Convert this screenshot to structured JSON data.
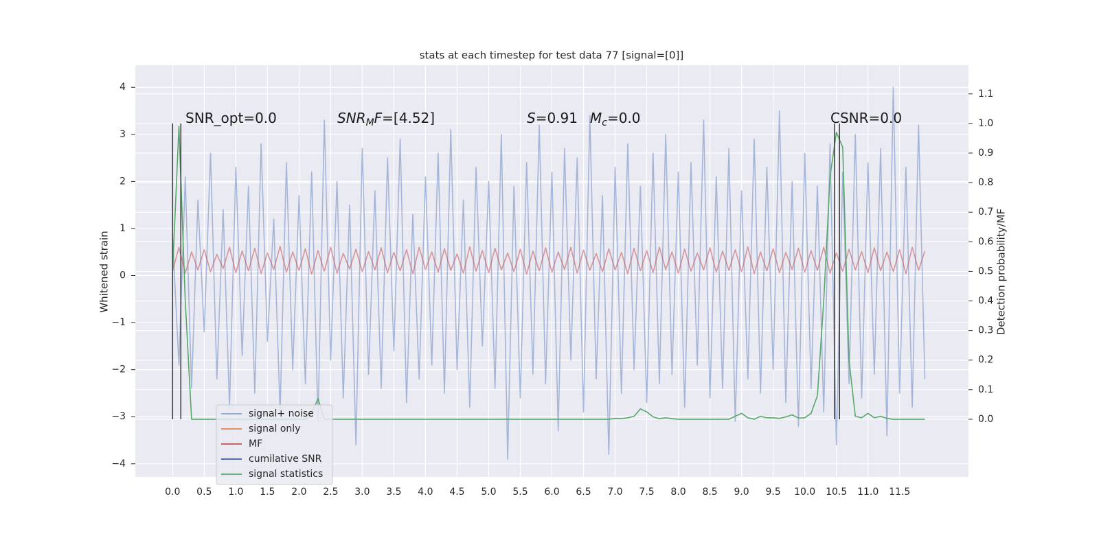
{
  "chart_data": {
    "type": "line",
    "title": "stats at each timestep for test data 77 [signal=[0]]",
    "y_label": "Whitened strain",
    "y2_label": "Detection probability/MF",
    "grid": true,
    "legend": "lower left",
    "xlim": [
      -0.59,
      12.59
    ],
    "ylim": [
      -4.28,
      4.47
    ],
    "y2lim": [
      -0.195,
      1.197
    ],
    "xticks": [
      {
        "value": 0,
        "label": "0.0"
      },
      0.5,
      {
        "value": 1,
        "label": "1.0"
      },
      1.5,
      {
        "value": 2,
        "label": "2.0"
      },
      2.5,
      {
        "value": 3,
        "label": "3.0"
      },
      3.5,
      {
        "value": 4,
        "label": "4.0"
      },
      4.5,
      {
        "value": 5,
        "label": "5.0"
      },
      5.5,
      {
        "value": 6,
        "label": "6.0"
      },
      6.5,
      {
        "value": 7,
        "label": "7.0"
      },
      7.5,
      {
        "value": 8,
        "label": "8.0"
      },
      8.5,
      {
        "value": 9,
        "label": "9.0"
      },
      9.5,
      {
        "value": 10,
        "label": "10.0"
      },
      10.5,
      {
        "value": 11,
        "label": "11.0"
      },
      11.5
    ],
    "yticks": [
      {
        "value": -4,
        "label": "−4"
      },
      {
        "value": -3,
        "label": "−3"
      },
      {
        "value": -2,
        "label": "−2"
      },
      {
        "value": -1,
        "label": "−1"
      },
      0,
      1,
      2,
      3,
      4
    ],
    "y2ticks": [
      {
        "value": 0,
        "label": "0.0"
      },
      0.1,
      0.2,
      0.3,
      0.4,
      0.5,
      0.6,
      0.7,
      0.8,
      0.9,
      {
        "value": 1,
        "label": "1.0"
      },
      1.1
    ],
    "annotations": [
      {
        "parts": [
          {
            "text": "SNR_opt=0.0"
          }
        ]
      },
      {
        "parts": [
          {
            "text": "SNR",
            "style": "italic"
          },
          {
            "text": "M",
            "style": "sub"
          },
          {
            "text": "F",
            "style": "italic"
          },
          {
            "text": "=[4.52]"
          }
        ]
      },
      {
        "parts": [
          {
            "text": "S",
            "style": "italic"
          },
          {
            "text": "=0.91"
          }
        ]
      },
      {
        "parts": [
          {
            "text": "M",
            "style": "italic"
          },
          {
            "text": "c",
            "style": "sub"
          },
          {
            "text": "=0.0"
          }
        ]
      },
      {
        "parts": [
          {
            "text": "CSNR=0.0"
          }
        ]
      }
    ],
    "vlines": {
      "color": "#3a3a3a",
      "x": [
        0,
        0.13,
        10.47,
        10.55
      ]
    },
    "x": [
      0,
      0.1,
      0.2,
      0.3,
      0.4,
      0.5,
      0.6,
      0.7,
      0.8,
      0.9,
      1,
      1.1,
      1.2,
      1.3,
      1.4,
      1.5,
      1.6,
      1.7,
      1.8,
      1.9,
      2,
      2.1,
      2.2,
      2.3,
      2.4,
      2.5,
      2.6,
      2.7,
      2.8,
      2.9,
      3,
      3.1,
      3.2,
      3.3,
      3.4,
      3.5,
      3.6,
      3.7,
      3.8,
      3.9,
      4,
      4.1,
      4.2,
      4.3,
      4.4,
      4.5,
      4.6,
      4.7,
      4.8,
      4.9,
      5,
      5.1,
      5.2,
      5.3,
      5.4,
      5.5,
      5.6,
      5.7,
      5.8,
      5.9,
      6,
      6.1,
      6.2,
      6.3,
      6.4,
      6.5,
      6.6,
      6.7,
      6.8,
      6.9,
      7,
      7.1,
      7.2,
      7.3,
      7.4,
      7.5,
      7.6,
      7.7,
      7.8,
      7.9,
      8,
      8.1,
      8.2,
      8.3,
      8.4,
      8.5,
      8.6,
      8.7,
      8.8,
      8.9,
      9,
      9.1,
      9.2,
      9.3,
      9.4,
      9.5,
      9.6,
      9.7,
      9.8,
      9.9,
      10,
      10.1,
      10.2,
      10.3,
      10.4,
      10.5,
      10.6,
      10.7,
      10.8,
      10.9,
      11,
      11.1,
      11.2,
      11.3,
      11.4,
      11.5,
      11.6,
      11.7,
      11.8,
      11.9
    ],
    "series": [
      {
        "name": "signal+ noise",
        "color": "#8da3cf",
        "values": [
          0.8,
          -1.9,
          2.1,
          -2.4,
          1.6,
          -1.2,
          2.6,
          -2.2,
          1.4,
          -2.8,
          2.3,
          -1.7,
          1.9,
          -2.5,
          2.8,
          -1.4,
          1.2,
          -2.9,
          2.4,
          -2.0,
          1.7,
          -2.3,
          2.2,
          -3.1,
          3.3,
          -1.8,
          2.0,
          -2.6,
          1.5,
          -3.6,
          2.7,
          -2.1,
          1.8,
          -2.4,
          2.5,
          -1.6,
          2.9,
          -2.7,
          1.3,
          -2.2,
          2.1,
          -1.9,
          2.6,
          -2.5,
          3.1,
          -2.0,
          1.6,
          -2.8,
          2.3,
          -1.5,
          2.0,
          -2.4,
          3.0,
          -3.9,
          1.9,
          -2.6,
          2.4,
          -2.1,
          3.2,
          -2.3,
          2.2,
          -3.3,
          2.7,
          -1.8,
          2.5,
          -2.9,
          3.4,
          -2.2,
          1.7,
          -3.8,
          2.3,
          -2.5,
          2.8,
          -2.0,
          1.9,
          -2.7,
          2.6,
          -2.3,
          3.0,
          -2.1,
          2.2,
          -2.8,
          2.4,
          -1.9,
          3.3,
          -2.6,
          2.1,
          -2.4,
          2.7,
          -3.1,
          1.8,
          -2.2,
          2.9,
          -2.5,
          2.3,
          -2.0,
          3.5,
          -2.7,
          2.0,
          -3.2,
          2.6,
          -2.4,
          1.9,
          -2.9,
          2.8,
          -3.6,
          2.2,
          -2.3,
          3.0,
          -2.6,
          2.4,
          -2.1,
          2.7,
          -3.4,
          4.0,
          -2.5,
          2.3,
          -2.8,
          3.2,
          -2.2
        ]
      },
      {
        "name": "signal only",
        "color": "#dd8452"
      },
      {
        "name": "MF",
        "color": "#c44e52",
        "values": [
          0.1,
          0.6,
          0.05,
          0.5,
          0.12,
          0.55,
          0.08,
          0.45,
          0.15,
          0.6,
          0.06,
          0.52,
          0.1,
          0.58,
          0.04,
          0.48,
          0.13,
          0.62,
          0.07,
          0.5,
          0.11,
          0.57,
          0.03,
          0.53,
          0.09,
          0.6,
          0.05,
          0.47,
          0.14,
          0.56,
          0.08,
          0.51,
          0.12,
          0.59,
          0.06,
          0.49,
          0.1,
          0.55,
          0.04,
          0.6,
          0.13,
          0.5,
          0.07,
          0.57,
          0.11,
          0.46,
          0.05,
          0.61,
          0.09,
          0.53,
          0.06,
          0.58,
          0.12,
          0.48,
          0.08,
          0.56,
          0.03,
          0.52,
          0.1,
          0.59,
          0.07,
          0.5,
          0.13,
          0.6,
          0.05,
          0.54,
          0.11,
          0.47,
          0.08,
          0.57,
          0.12,
          0.49,
          0.04,
          0.58,
          0.1,
          0.53,
          0.06,
          0.6,
          0.13,
          0.5,
          0.05,
          0.56,
          0.09,
          0.48,
          0.12,
          0.59,
          0.07,
          0.52,
          0.11,
          0.55,
          0.08,
          0.61,
          0.04,
          0.5,
          0.1,
          0.57,
          0.06,
          0.49,
          0.13,
          0.58,
          0.07,
          0.53,
          0.11,
          0.6,
          0.05,
          0.48,
          0.09,
          0.56,
          0.12,
          0.51,
          0.06,
          0.59,
          0.1,
          0.5,
          0.08,
          0.55,
          0.04,
          0.6,
          0.11,
          0.52
        ]
      },
      {
        "name": "cumilative SNR",
        "color": "#3b5b9d"
      },
      {
        "name": "signal statistics",
        "color": "#55a868",
        "axis": "y2",
        "values": [
          0.5,
          0.99,
          0.4,
          0,
          0,
          0,
          0,
          0,
          0,
          0,
          0,
          0,
          0,
          0,
          0,
          0,
          0,
          0,
          0,
          0,
          0,
          0,
          0.02,
          0.07,
          0,
          0,
          0,
          0,
          0,
          0,
          0,
          0,
          0,
          0,
          0,
          0,
          0,
          0,
          0,
          0,
          0,
          0,
          0,
          0,
          0,
          0,
          0,
          0,
          0,
          0,
          0,
          0,
          0,
          0,
          0,
          0,
          0,
          0,
          0,
          0,
          0,
          0,
          0,
          0,
          0,
          0,
          0,
          0,
          0,
          0,
          0.003,
          0.002,
          0.005,
          0.01,
          0.035,
          0.025,
          0.008,
          0.002,
          0.005,
          0.002,
          0,
          0,
          0,
          0,
          0,
          0,
          0,
          0,
          0,
          0.01,
          0.02,
          0.005,
          0,
          0.01,
          0.005,
          0.005,
          0.003,
          0.008,
          0.015,
          0.004,
          0.005,
          0.02,
          0.08,
          0.4,
          0.82,
          0.97,
          0.92,
          0.2,
          0.01,
          0.005,
          0.02,
          0.005,
          0.01,
          0.003,
          0,
          0,
          0,
          0,
          0,
          0
        ]
      }
    ]
  }
}
